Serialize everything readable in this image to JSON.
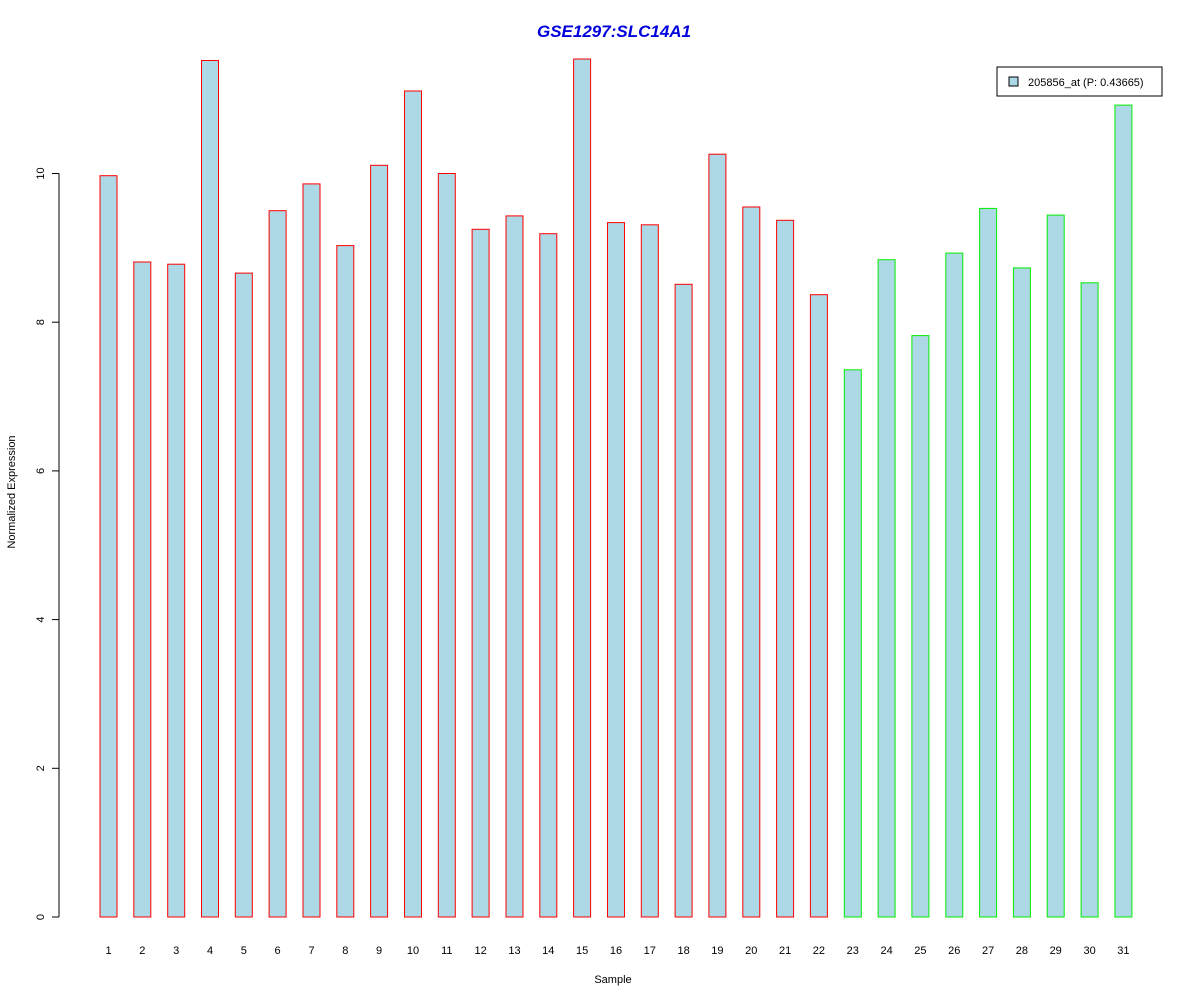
{
  "chart_data": {
    "type": "bar",
    "title": "GSE1297:SLC14A1",
    "xlabel": "Sample",
    "ylabel": "Normalized Expression",
    "ylim": [
      0,
      11.6
    ],
    "yticks": [
      0,
      2,
      4,
      6,
      8,
      10
    ],
    "categories": [
      "1",
      "2",
      "3",
      "4",
      "5",
      "6",
      "7",
      "8",
      "9",
      "10",
      "11",
      "12",
      "13",
      "14",
      "15",
      "16",
      "17",
      "18",
      "19",
      "20",
      "21",
      "22",
      "23",
      "24",
      "25",
      "26",
      "27",
      "28",
      "29",
      "30",
      "31"
    ],
    "series": [
      {
        "name": "205856_at (P: 0.43665)",
        "values": [
          9.97,
          8.81,
          8.78,
          11.52,
          8.66,
          9.5,
          9.86,
          9.03,
          10.11,
          11.11,
          10.0,
          9.25,
          9.43,
          9.19,
          11.54,
          9.34,
          9.31,
          8.51,
          10.26,
          9.55,
          9.37,
          8.37,
          7.36,
          8.84,
          7.82,
          8.93,
          9.53,
          8.73,
          9.44,
          8.53,
          10.92
        ],
        "fill": "#add8e6",
        "edge_colors": [
          "#ff0000",
          "#ff0000",
          "#ff0000",
          "#ff0000",
          "#ff0000",
          "#ff0000",
          "#ff0000",
          "#ff0000",
          "#ff0000",
          "#ff0000",
          "#ff0000",
          "#ff0000",
          "#ff0000",
          "#ff0000",
          "#ff0000",
          "#ff0000",
          "#ff0000",
          "#ff0000",
          "#ff0000",
          "#ff0000",
          "#ff0000",
          "#ff0000",
          "#00ee00",
          "#00ee00",
          "#00ee00",
          "#00ee00",
          "#00ee00",
          "#00ee00",
          "#00ee00",
          "#00ee00",
          "#00ee00"
        ]
      }
    ],
    "legend": {
      "placement": "top-right",
      "label": "205856_at (P: 0.43665)"
    },
    "grid": false
  }
}
